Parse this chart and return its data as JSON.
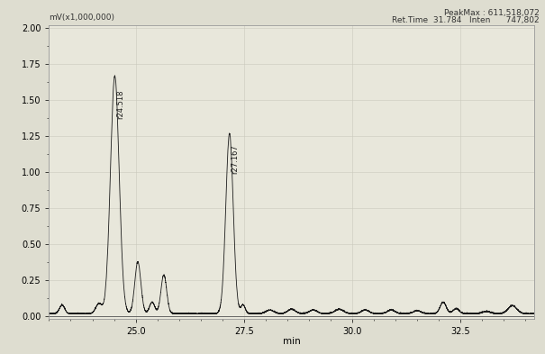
{
  "title_left": "mV(x1,000,000)",
  "title_right_line1": "PeakMax : 611,518,072",
  "title_right_line2": "Ret.Time  31.784   Inten      747,802",
  "xlabel": "min",
  "xlim": [
    23.0,
    34.2
  ],
  "ylim": [
    -0.02,
    2.02
  ],
  "yticks": [
    0.0,
    0.25,
    0.5,
    0.75,
    1.0,
    1.25,
    1.5,
    1.75,
    2.0
  ],
  "xticks": [
    25.0,
    27.5,
    30.0,
    32.5
  ],
  "background_color": "#deddd0",
  "plot_bg_color": "#e8e7db",
  "line_color": "#1a1a1a",
  "grid_color": "#c8c7ba",
  "peak1_x": 24.518,
  "peak1_y": 1.65,
  "peak1_label": "r24.518",
  "peak2_x": 27.167,
  "peak2_y": 1.25,
  "peak2_label": "r27.167",
  "figsize": [
    6.05,
    3.93
  ],
  "dpi": 100
}
